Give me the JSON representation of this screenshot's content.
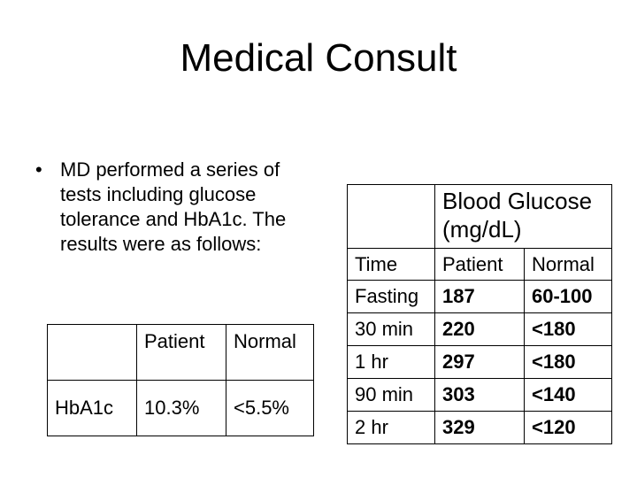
{
  "slide": {
    "title": "Medical Consult",
    "bullet": "MD performed a series of tests including glucose tolerance and HbA1c.  The results were as follows:"
  },
  "hba1c_table": {
    "headers": [
      "",
      "Patient",
      "Normal"
    ],
    "rows": [
      [
        "HbA1c",
        "10.3%",
        "<5.5%"
      ]
    ]
  },
  "glucose_table": {
    "title": "Blood Glucose (mg/dL)",
    "headers": [
      "Time",
      "Patient",
      "Normal"
    ],
    "rows": [
      [
        "Fasting",
        "187",
        "60-100"
      ],
      [
        "30 min",
        "220",
        "<180"
      ],
      [
        "1 hr",
        "297",
        "<180"
      ],
      [
        "90 min",
        "303",
        "<140"
      ],
      [
        "2 hr",
        "329",
        "<120"
      ]
    ]
  }
}
